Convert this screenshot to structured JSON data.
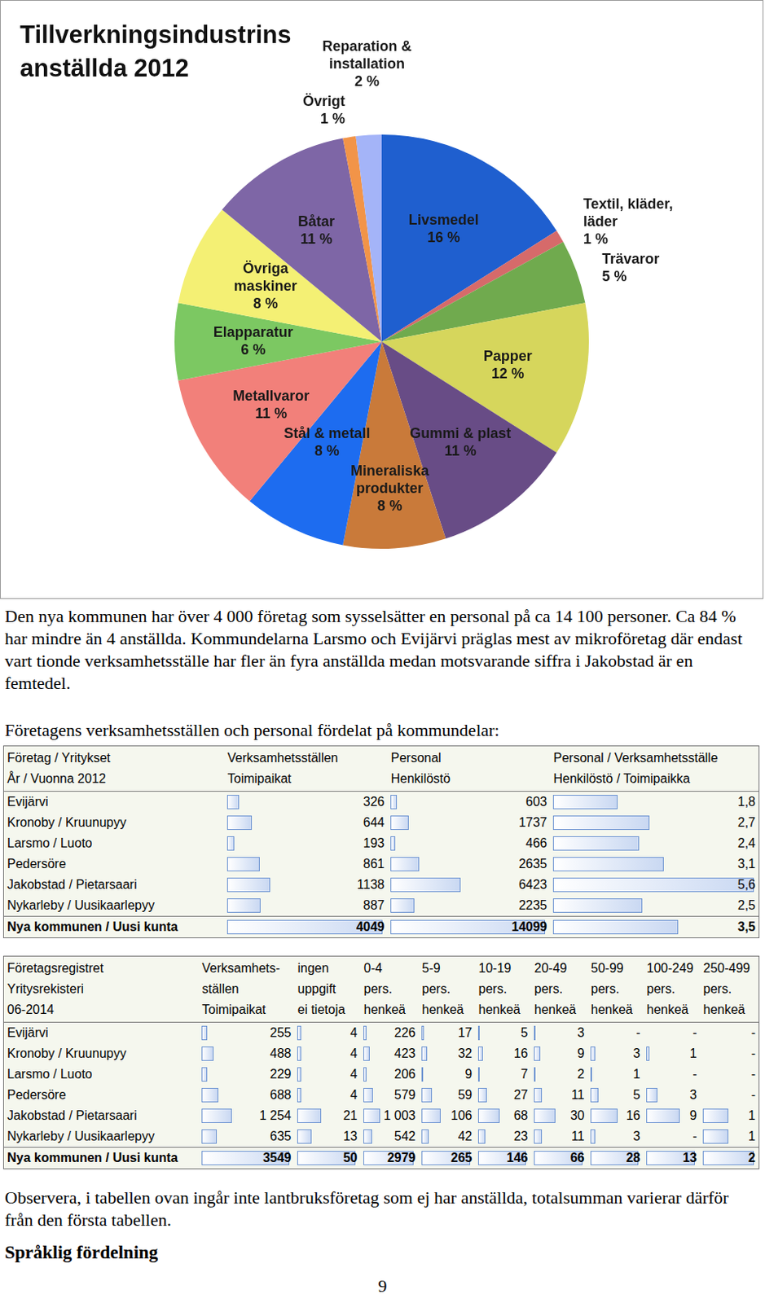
{
  "chart_data": {
    "type": "pie",
    "title": "Tillverkningsindustrins anställda 2012",
    "categories": [
      "Livsmedel",
      "Textil, kläder, läder",
      "Trävaror",
      "Papper",
      "Gummi & plast",
      "Mineraliska produkter",
      "Stål & metall",
      "Metallvaror",
      "Elapparatur",
      "Övriga maskiner",
      "Båtar",
      "Övrigt",
      "Reparation & installation"
    ],
    "values": [
      16,
      1,
      5,
      12,
      11,
      8,
      8,
      11,
      6,
      8,
      11,
      1,
      2
    ],
    "value_labels": [
      "16 %",
      "1 %",
      "5 %",
      "12 %",
      "11 %",
      "8 %",
      "8 %",
      "11 %",
      "6 %",
      "8 %",
      "11 %",
      "1 %",
      "2 %"
    ],
    "colors": [
      "#1f5fcf",
      "#d66a6a",
      "#70aa4e",
      "#d6d65c",
      "#684c86",
      "#c97a3a",
      "#1d6cf0",
      "#f2807a",
      "#7cc862",
      "#f4f074",
      "#7e66a6",
      "#f29448",
      "#a4b4f8"
    ],
    "data_labels": true
  },
  "paragraph": "Den nya kommunen har över 4 000 företag som sysselsätter en personal på ca 14 100 personer. Ca 84 % har mindre än 4 anställda. Kommundelarna Larsmo och Evijärvi präglas mest av mikroföretag där endast vart tionde verksamhetsställe har fler än fyra anställda medan motsvarande siffra i Jakobstad är en femtedel.",
  "table1_caption": "Företagens verksamhetsställen och personal fördelat på kommundelar:",
  "table1": {
    "header": [
      [
        "Företag / Yritykset",
        "År / Vuonna 2012"
      ],
      [
        "Verksamhetsställen",
        "Toimipaikat"
      ],
      [
        "Personal",
        "Henkilöstö"
      ],
      [
        "Personal / Verksamhetsställe",
        "Henkilöstö / Toimipaikka"
      ]
    ],
    "rows": [
      [
        "Evijärvi",
        326,
        603,
        {
          "value": 1.8,
          "label": "1,8"
        }
      ],
      [
        "Kronoby / Kruunupyy",
        644,
        1737,
        {
          "value": 2.7,
          "label": "2,7"
        }
      ],
      [
        "Larsmo / Luoto",
        193,
        466,
        {
          "value": 2.4,
          "label": "2,4"
        }
      ],
      [
        "Pedersöre",
        861,
        2635,
        {
          "value": 3.1,
          "label": "3,1"
        }
      ],
      [
        "Jakobstad / Pietarsaari",
        1138,
        6423,
        {
          "value": 5.6,
          "label": "5,6"
        }
      ],
      [
        "Nykarleby / Uusikaarlepyy",
        887,
        2235,
        {
          "value": 2.5,
          "label": "2,5"
        }
      ]
    ],
    "total": [
      "Nya kommunen / Uusi kunta",
      4049,
      14099,
      {
        "value": 3.5,
        "label": "3,5"
      }
    ]
  },
  "table2": {
    "header": [
      [
        "Företagsregistret",
        "Yritysrekisteri",
        "06-2014"
      ],
      [
        "Verksamhets-",
        "ställen",
        "Toimipaikat"
      ],
      [
        "ingen",
        "uppgift",
        "ei tietoja"
      ],
      [
        "0-4",
        "pers.",
        "henkeä"
      ],
      [
        "5-9",
        "pers.",
        "henkeä"
      ],
      [
        "10-19",
        "pers.",
        "henkeä"
      ],
      [
        "20-49",
        "pers.",
        "henkeä"
      ],
      [
        "50-99",
        "pers.",
        "henkeä"
      ],
      [
        "100-249",
        "pers.",
        "henkeä"
      ],
      [
        "250-499",
        "pers.",
        "henkeä"
      ]
    ],
    "rows": [
      [
        "Evijärvi",
        255,
        4,
        226,
        17,
        5,
        3,
        "-",
        "-",
        "-"
      ],
      [
        "Kronoby / Kruunupyy",
        488,
        4,
        423,
        32,
        16,
        9,
        3,
        1,
        "-"
      ],
      [
        "Larsmo / Luoto",
        229,
        4,
        206,
        9,
        7,
        2,
        1,
        "-",
        "-"
      ],
      [
        "Pedersöre",
        688,
        4,
        579,
        59,
        27,
        11,
        5,
        3,
        "-"
      ],
      [
        "Jakobstad / Pietarsaari",
        {
          "value": 1254,
          "label": "1 254"
        },
        21,
        {
          "value": 1003,
          "label": "1 003"
        },
        106,
        68,
        30,
        16,
        9,
        1
      ],
      [
        "Nykarleby / Uusikaarlepyy",
        635,
        13,
        542,
        42,
        23,
        11,
        3,
        "-",
        1
      ]
    ],
    "total": [
      "Nya kommunen / Uusi kunta",
      3549,
      50,
      2979,
      265,
      146,
      66,
      28,
      13,
      2
    ]
  },
  "note": "Observera, i tabellen ovan ingår inte lantbruksföretag som ej har anställda, totalsumman varierar därför från den första tabellen.",
  "heading": "Språklig fördelning",
  "page_number": "9"
}
